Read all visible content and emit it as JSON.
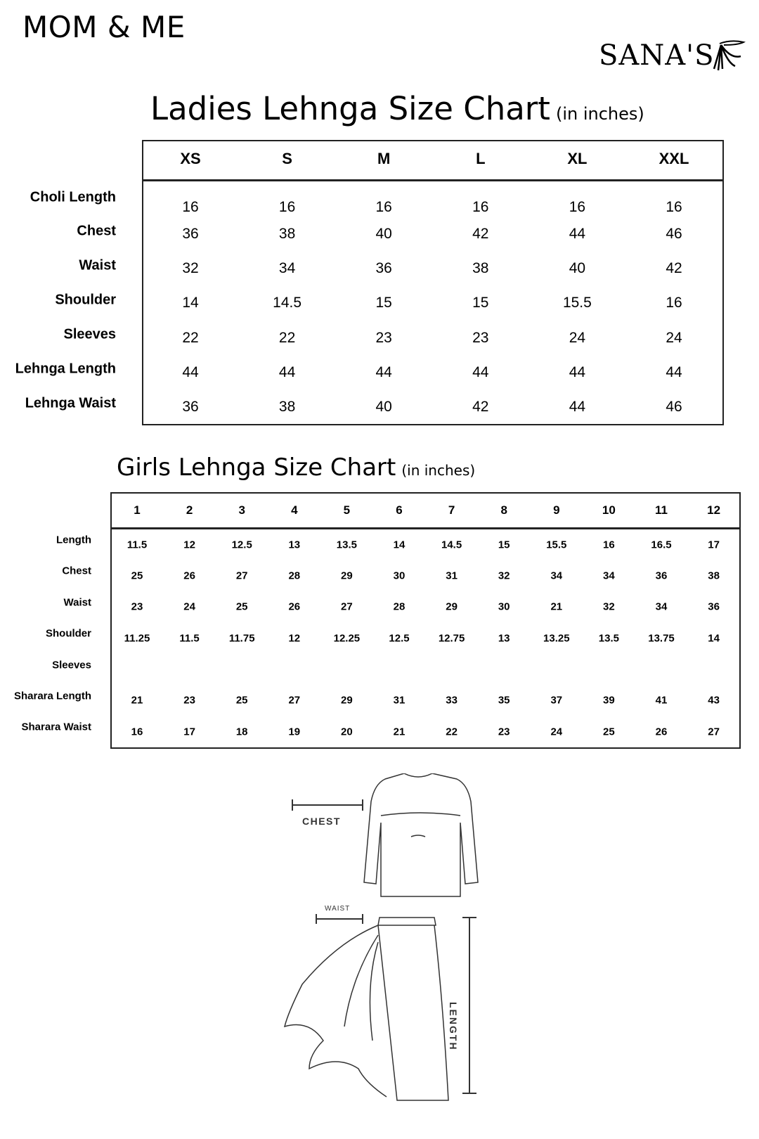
{
  "header": {
    "title": "MOM & ME",
    "logo_text": "SANA'S"
  },
  "ladies": {
    "title": "Ladies Lehnga Size Chart",
    "unit": "(in inches)",
    "sizes": [
      "XS",
      "S",
      "M",
      "L",
      "XL",
      "XXL"
    ],
    "rows": [
      {
        "label": "Choli Length",
        "values": [
          "16",
          "16",
          "16",
          "16",
          "16",
          "16"
        ]
      },
      {
        "label": "Chest",
        "values": [
          "36",
          "38",
          "40",
          "42",
          "44",
          "46"
        ]
      },
      {
        "label": "Waist",
        "values": [
          "32",
          "34",
          "36",
          "38",
          "40",
          "42"
        ]
      },
      {
        "label": "Shoulder",
        "values": [
          "14",
          "14.5",
          "15",
          "15",
          "15.5",
          "16"
        ]
      },
      {
        "label": "Sleeves",
        "values": [
          "22",
          "22",
          "23",
          "23",
          "24",
          "24"
        ]
      },
      {
        "label": "Lehnga Length",
        "values": [
          "44",
          "44",
          "44",
          "44",
          "44",
          "44"
        ]
      },
      {
        "label": "Lehnga Waist",
        "values": [
          "36",
          "38",
          "40",
          "42",
          "44",
          "46"
        ]
      }
    ]
  },
  "girls": {
    "title": "Girls Lehnga Size Chart",
    "unit": "(in inches)",
    "sizes": [
      "1",
      "2",
      "3",
      "4",
      "5",
      "6",
      "7",
      "8",
      "9",
      "10",
      "11",
      "12"
    ],
    "rows": [
      {
        "label": "Length",
        "values": [
          "11.5",
          "12",
          "12.5",
          "13",
          "13.5",
          "14",
          "14.5",
          "15",
          "15.5",
          "16",
          "16.5",
          "17"
        ]
      },
      {
        "label": "Chest",
        "values": [
          "25",
          "26",
          "27",
          "28",
          "29",
          "30",
          "31",
          "32",
          "34",
          "34",
          "36",
          "38"
        ]
      },
      {
        "label": "Waist",
        "values": [
          "23",
          "24",
          "25",
          "26",
          "27",
          "28",
          "29",
          "30",
          "21",
          "32",
          "34",
          "36"
        ]
      },
      {
        "label": "Shoulder",
        "values": [
          "11.25",
          "11.5",
          "11.75",
          "12",
          "12.25",
          "12.5",
          "12.75",
          "13",
          "13.25",
          "13.5",
          "13.75",
          "14"
        ]
      },
      {
        "label": "Sleeves",
        "values": [
          "",
          "",
          "",
          "",
          "",
          "",
          "",
          "",
          "",
          "",
          "",
          ""
        ]
      },
      {
        "label": "Sharara Length",
        "values": [
          "21",
          "23",
          "25",
          "27",
          "29",
          "31",
          "33",
          "35",
          "37",
          "39",
          "41",
          "43"
        ]
      },
      {
        "label": "Sharara Waist",
        "values": [
          "16",
          "17",
          "18",
          "19",
          "20",
          "21",
          "22",
          "23",
          "24",
          "25",
          "26",
          "27"
        ]
      }
    ]
  },
  "illustration": {
    "chest_label": "CHEST",
    "waist_label": "WAIST",
    "length_label": "LENGTH"
  }
}
